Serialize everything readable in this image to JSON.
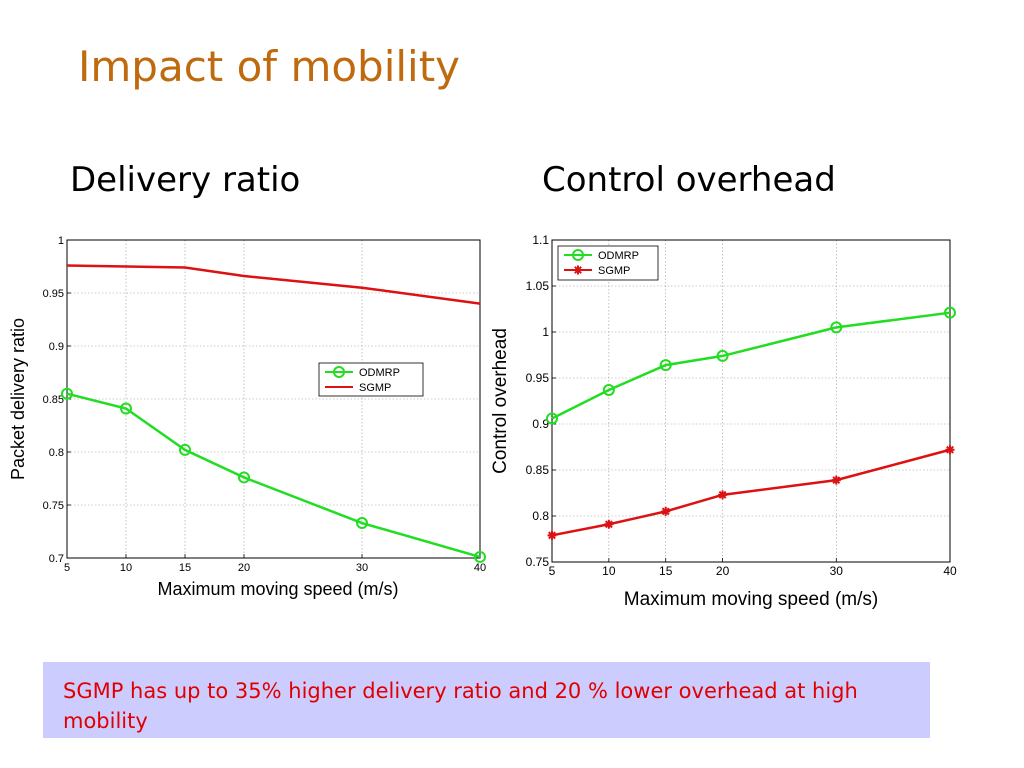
{
  "slide": {
    "title": "Impact of mobility",
    "subtitle_left": "Delivery ratio",
    "subtitle_right": "Control overhead",
    "note": "SGMP has up to 35% higher delivery ratio and 20 % lower overhead at high mobility"
  },
  "colors": {
    "title": "#c06a10",
    "odmrp": "#22dd22",
    "sgmp": "#dd1111",
    "note_bg": "#ccccff",
    "note_text": "#e00000"
  },
  "chart_data": [
    {
      "type": "line",
      "title": "",
      "xlabel": "Maximum moving speed (m/s)",
      "ylabel": "Packet delivery ratio",
      "x": [
        5,
        10,
        15,
        20,
        30,
        40
      ],
      "xticks": [
        "5",
        "10",
        "15",
        "20",
        "30",
        "40"
      ],
      "yticks": [
        "0.7",
        "0.75",
        "0.8",
        "0.85",
        "0.9",
        "0.95",
        "1"
      ],
      "xlim": [
        5,
        40
      ],
      "ylim": [
        0.7,
        1.0
      ],
      "grid": true,
      "legend_position": "center-right",
      "series": [
        {
          "name": "ODMRP",
          "marker": "circle",
          "color": "#22dd22",
          "values": [
            0.855,
            0.841,
            0.802,
            0.776,
            0.733,
            0.701
          ]
        },
        {
          "name": "SGMP",
          "marker": "none",
          "color": "#dd1111",
          "values": [
            0.976,
            0.975,
            0.974,
            0.966,
            0.955,
            0.94
          ]
        }
      ]
    },
    {
      "type": "line",
      "title": "",
      "xlabel": "Maximum moving speed (m/s)",
      "ylabel": "Control overhead",
      "x": [
        5,
        10,
        15,
        20,
        30,
        40
      ],
      "xticks": [
        "5",
        "10",
        "15",
        "20",
        "30",
        "40"
      ],
      "yticks": [
        "0.75",
        "0.8",
        "0.85",
        "0.9",
        "0.95",
        "1",
        "1.05",
        "1.1"
      ],
      "xlim": [
        5,
        40
      ],
      "ylim": [
        0.75,
        1.1
      ],
      "grid": true,
      "legend_position": "top-left",
      "series": [
        {
          "name": "ODMRP",
          "marker": "circle",
          "color": "#22dd22",
          "values": [
            0.906,
            0.937,
            0.964,
            0.974,
            1.005,
            1.021
          ]
        },
        {
          "name": "SGMP",
          "marker": "star",
          "color": "#dd1111",
          "values": [
            0.779,
            0.791,
            0.805,
            0.823,
            0.839,
            0.872
          ]
        }
      ]
    }
  ]
}
